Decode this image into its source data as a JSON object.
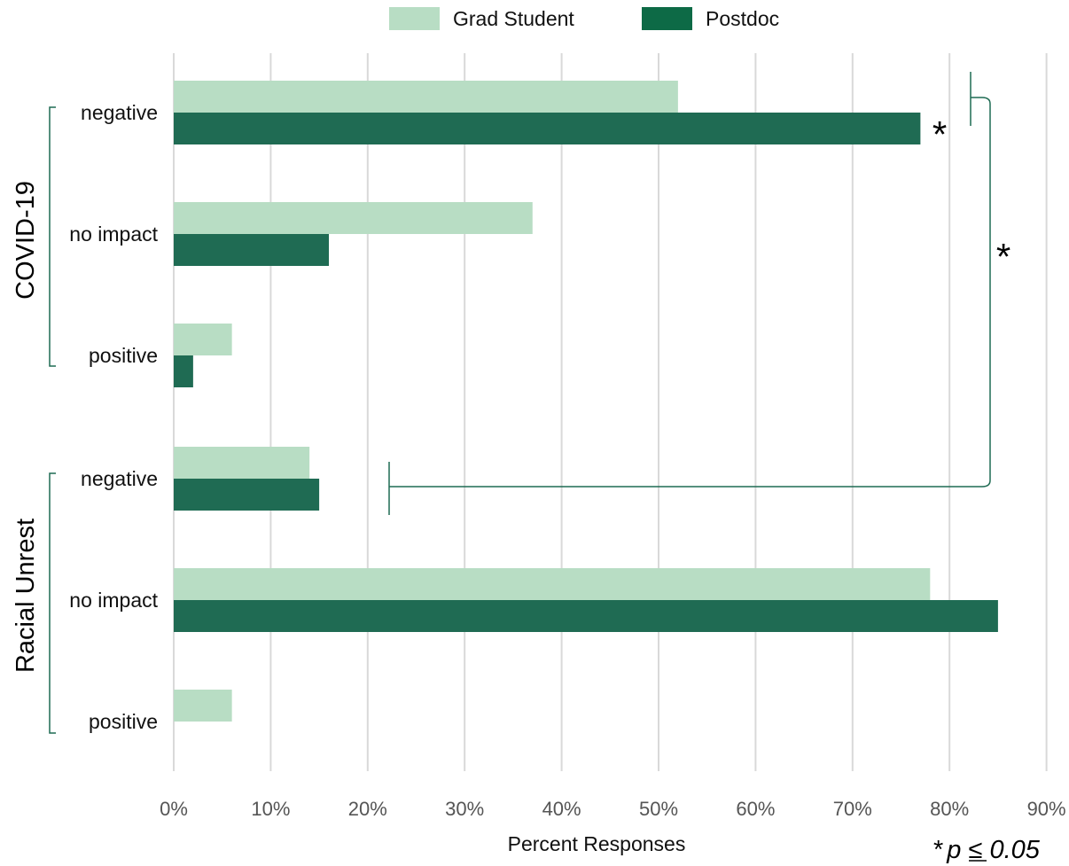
{
  "colors": {
    "grad": "#b8ddc4",
    "postdoc": "#1f6b53",
    "legend_postdoc": "#0d6a46",
    "bracket": "#1f6b53",
    "grid": "#d9d9d9"
  },
  "chart_data": {
    "type": "bar",
    "orientation": "horizontal",
    "xlabel": "Percent Responses",
    "xlim": [
      0,
      90
    ],
    "x_ticks": [
      "0%",
      "10%",
      "20%",
      "30%",
      "40%",
      "50%",
      "60%",
      "70%",
      "80%",
      "90%"
    ],
    "grid": true,
    "legend_position": "top",
    "groups": [
      {
        "label": "COVID-19",
        "categories": [
          "negative",
          "no impact",
          "positive"
        ]
      },
      {
        "label": "Racial Unrest",
        "categories": [
          "negative",
          "no impact",
          "positive"
        ]
      }
    ],
    "series": [
      {
        "name": "Grad Student",
        "values": [
          52,
          37,
          6,
          14,
          78,
          6
        ]
      },
      {
        "name": "Postdoc",
        "values": [
          77,
          16,
          2,
          15,
          85,
          0
        ]
      }
    ],
    "annotations": {
      "star": "*",
      "p_note_star": "*",
      "p_note_text": "p ≤ 0.05"
    }
  }
}
